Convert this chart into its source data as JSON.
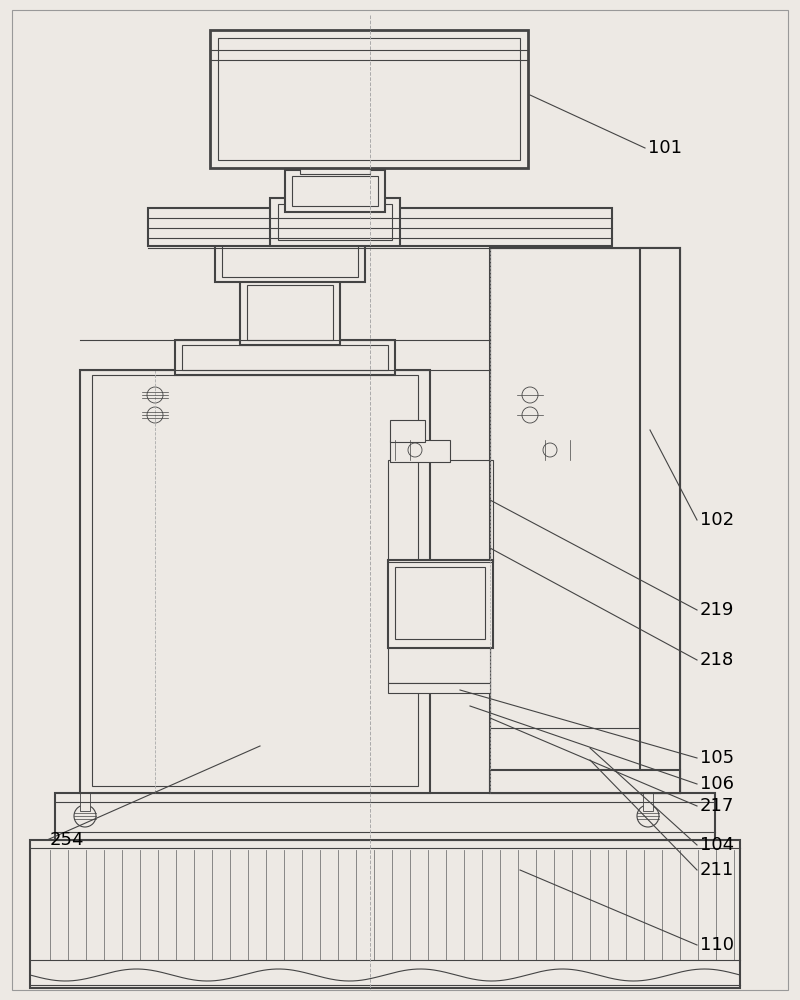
{
  "bg_color": "#ede9e4",
  "line_color": "#444444",
  "lw_main": 1.5,
  "lw_thin": 0.8,
  "lw_med": 1.2,
  "font_size": 13,
  "labels": [
    [
      "110",
      700,
      945,
      520,
      870
    ],
    [
      "211",
      700,
      870,
      590,
      760
    ],
    [
      "104",
      700,
      845,
      590,
      748
    ],
    [
      "217",
      700,
      806,
      490,
      718
    ],
    [
      "106",
      700,
      784,
      470,
      706
    ],
    [
      "105",
      700,
      758,
      460,
      690
    ],
    [
      "218",
      700,
      660,
      490,
      548
    ],
    [
      "219",
      700,
      610,
      490,
      500
    ],
    [
      "102",
      700,
      520,
      650,
      430
    ],
    [
      "101",
      648,
      148,
      530,
      95
    ],
    [
      "254",
      50,
      840,
      260,
      746
    ]
  ]
}
